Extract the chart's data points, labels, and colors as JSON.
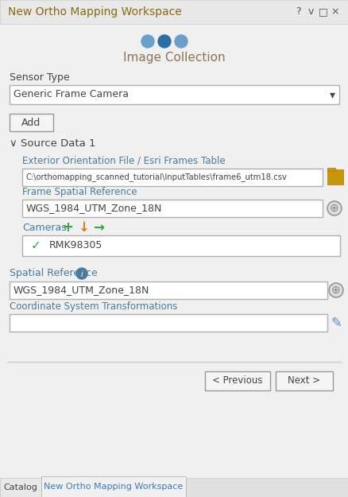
{
  "title": "New Ortho Mapping Workspace",
  "title_color": "#8B6914",
  "bg_color": "#f0f0f0",
  "dialog_bg": "#f0f0f0",
  "header_text": "Image Collection",
  "header_color": "#8B7355",
  "dots": [
    "#6b9fc8",
    "#2e6da4",
    "#6b9fc8"
  ],
  "sensor_type_label": "Sensor Type",
  "sensor_type_value": "Generic Frame Camera",
  "add_button": "Add",
  "source_data_label": "∨ Source Data 1",
  "ext_orient_label": "Exterior Orientation File / Esri Frames Table",
  "ext_orient_value": "C:\\orthomapping_scanned_tutorial\\InputTables\\frame6_utm18.csv",
  "frame_spatial_ref_label": "Frame Spatial Reference",
  "frame_spatial_ref_value": "WGS_1984_UTM_Zone_18N",
  "cameras_label": "Cameras",
  "camera_entry": "RMK98305",
  "spatial_ref_label": "Spatial Reference",
  "spatial_ref_value": "WGS_1984_UTM_Zone_18N",
  "coord_transform_label": "Coordinate System Transformations",
  "prev_button": "< Previous",
  "next_button": "Next >",
  "tab1": "Catalog",
  "tab2": "New Ortho Mapping Workspace",
  "field_bg": "#ffffff",
  "field_border": "#b0b0b0",
  "label_color": "#4a7a9b",
  "text_color": "#333333",
  "dark_text": "#444444",
  "button_border": "#999999",
  "green_color": "#2eaa44",
  "orange_color": "#e07820",
  "globe_color": "#888888",
  "folder_color": "#c8960a",
  "tab_active_color": "#3a7bbf",
  "window_control_color": "#555555",
  "titlebar_bg": "#e8e8e8",
  "separator_color": "#cccccc",
  "source_section_bg": "#f0f0f0"
}
